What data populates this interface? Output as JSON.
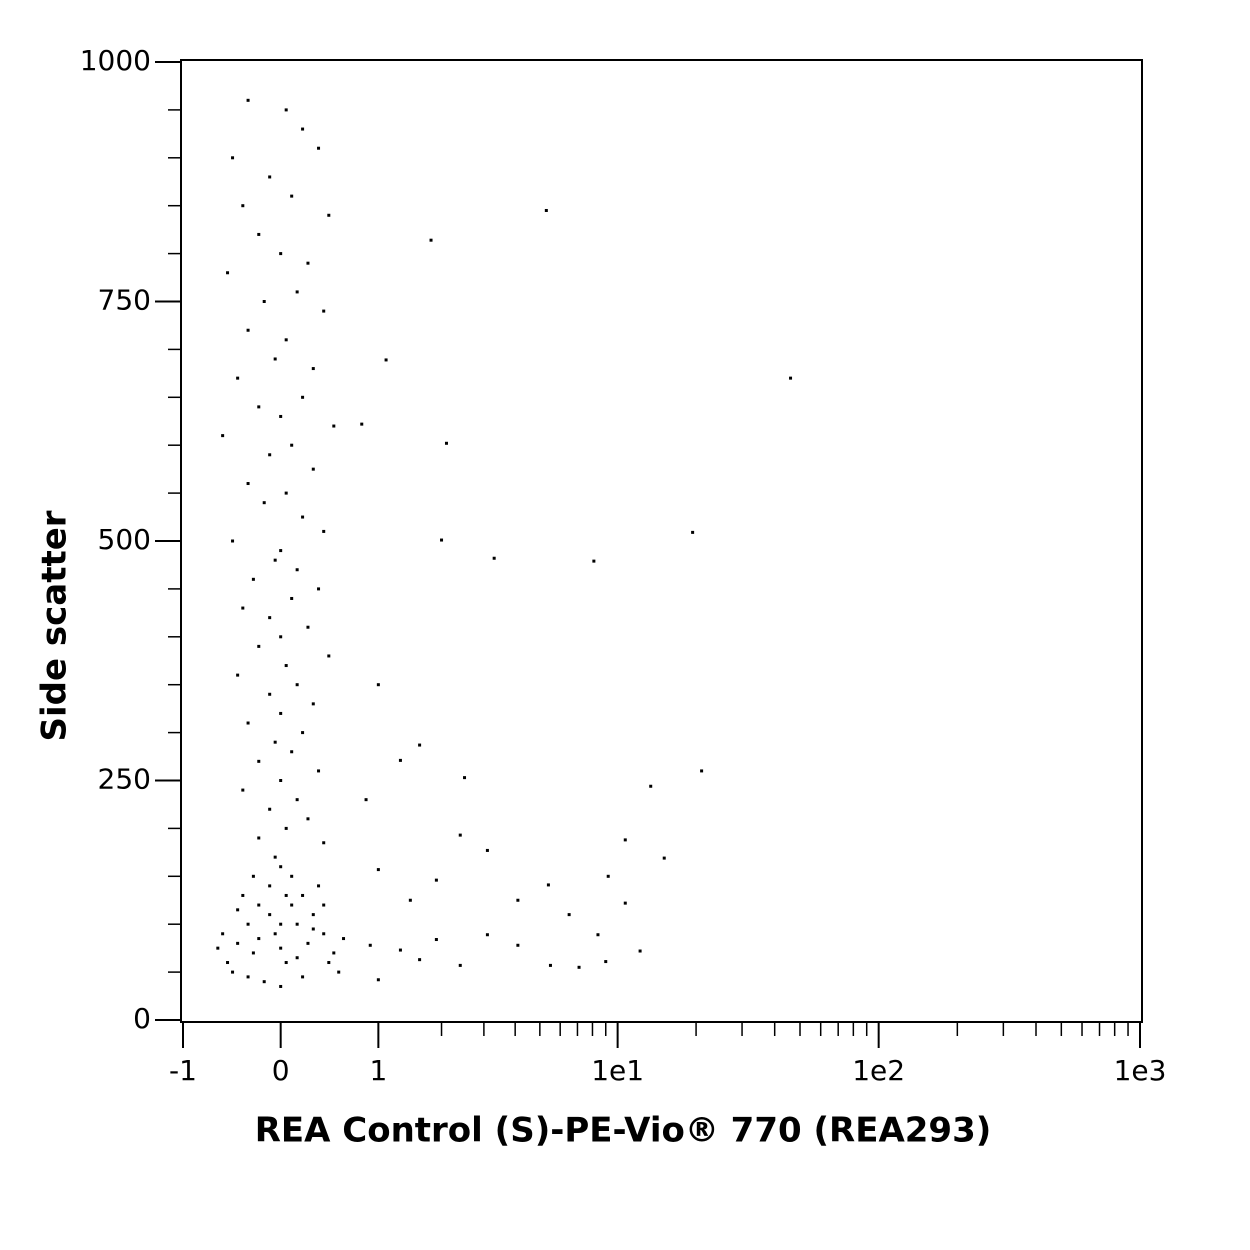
{
  "chart_data": {
    "type": "scatter",
    "x_label": "REA Control (S)-PE-Vio® 770 (REA293)",
    "y_label": "Side scatter",
    "xscale": "biexponential",
    "xlim": [
      -1,
      1000
    ],
    "ylim": [
      0,
      1000
    ],
    "xticks": [
      -1,
      0,
      1,
      {
        "value": 10,
        "label": "1e1"
      },
      {
        "value": 100,
        "label": "1e2"
      },
      {
        "value": 1000,
        "label": "1e3"
      }
    ],
    "xminorticks": [
      2,
      3,
      4,
      5,
      6,
      7,
      8,
      9,
      20,
      30,
      40,
      50,
      60,
      70,
      80,
      90,
      200,
      300,
      400,
      500,
      600,
      700,
      800,
      900
    ],
    "yticks": [
      0,
      250,
      500,
      750,
      1000
    ],
    "yminorticks": [
      50,
      100,
      150,
      200,
      300,
      350,
      400,
      450,
      550,
      600,
      650,
      700,
      800,
      850,
      900,
      950
    ],
    "color": "#000000",
    "x": [
      5.3,
      1.8,
      1.1,
      2.1,
      46,
      19.4,
      8.1,
      3.3,
      2.0,
      21,
      13.4,
      10.7,
      15.1,
      9.2,
      10.7,
      12.2,
      1.0,
      0.8,
      1.3,
      1.6,
      2.5,
      2.4,
      3.1,
      4.1,
      5.4,
      6.5,
      8.4,
      9.0,
      7.1,
      5.5,
      4.1,
      3.1,
      2.4,
      1.9,
      1.6,
      1.3,
      1.0,
      0.9,
      1.45,
      1.9,
      1.0,
      0.85,
      -0.3,
      0.05,
      0.2,
      -0.45,
      0.35,
      -0.1,
      0.1,
      -0.35,
      0.45,
      -0.2,
      0.0,
      0.25,
      -0.5,
      0.15,
      -0.15,
      0.4,
      -0.3,
      0.05,
      -0.05,
      0.3,
      -0.4,
      0.2,
      -0.2,
      0.0,
      0.5,
      -0.55,
      0.1,
      -0.1,
      0.3,
      -0.3,
      0.05,
      -0.15,
      0.2,
      0.4,
      -0.45,
      0.0,
      -0.05,
      0.15,
      -0.25,
      0.35,
      0.1,
      -0.35,
      -0.1,
      0.25,
      0.0,
      -0.2,
      0.45,
      0.05,
      -0.4,
      0.15,
      -0.1,
      0.3,
      0.0,
      -0.3,
      0.2,
      -0.05,
      0.1,
      -0.2,
      0.35,
      0.0,
      -0.35,
      0.15,
      -0.1,
      0.25,
      0.05,
      -0.2,
      0.4,
      -0.5,
      -0.4,
      -0.3,
      -0.2,
      -0.1,
      0,
      0.1,
      0.2,
      0.3,
      0.4,
      0.5,
      0.55,
      -0.55,
      -0.45,
      -0.35,
      -0.25,
      -0.15,
      -0.05,
      0.05,
      0.15,
      0.25,
      0.35,
      0.45,
      -0.3,
      0.0,
      0.2,
      -0.1,
      0.1,
      -0.2,
      0.3,
      0.0,
      -0.4,
      0.4,
      -0.05,
      0.05,
      -0.25,
      0.15,
      0.6,
      -0.6,
      0.0
    ],
    "y": [
      845,
      814,
      689,
      602,
      670,
      509,
      479,
      482,
      501,
      260,
      244,
      188,
      169,
      150,
      122,
      72,
      350,
      622,
      271,
      287,
      253,
      193,
      177,
      125,
      141,
      110,
      89,
      61,
      55,
      57,
      78,
      89,
      57,
      84,
      63,
      73,
      42,
      78,
      125,
      146,
      157,
      230,
      960,
      950,
      930,
      900,
      910,
      880,
      860,
      850,
      840,
      820,
      800,
      790,
      780,
      760,
      750,
      740,
      720,
      710,
      690,
      680,
      670,
      650,
      640,
      630,
      620,
      610,
      600,
      590,
      575,
      560,
      550,
      540,
      525,
      510,
      500,
      490,
      480,
      470,
      460,
      450,
      440,
      430,
      420,
      410,
      400,
      390,
      380,
      370,
      360,
      350,
      340,
      330,
      320,
      310,
      300,
      290,
      280,
      270,
      260,
      250,
      240,
      230,
      220,
      210,
      200,
      190,
      185,
      60,
      80,
      100,
      120,
      140,
      160,
      150,
      130,
      110,
      90,
      70,
      50,
      90,
      50,
      130,
      70,
      40,
      90,
      60,
      100,
      80,
      140,
      60,
      45,
      35,
      45,
      110,
      120,
      85,
      95,
      75,
      115,
      120,
      170,
      130,
      150,
      65,
      85,
      75,
      100
    ]
  }
}
